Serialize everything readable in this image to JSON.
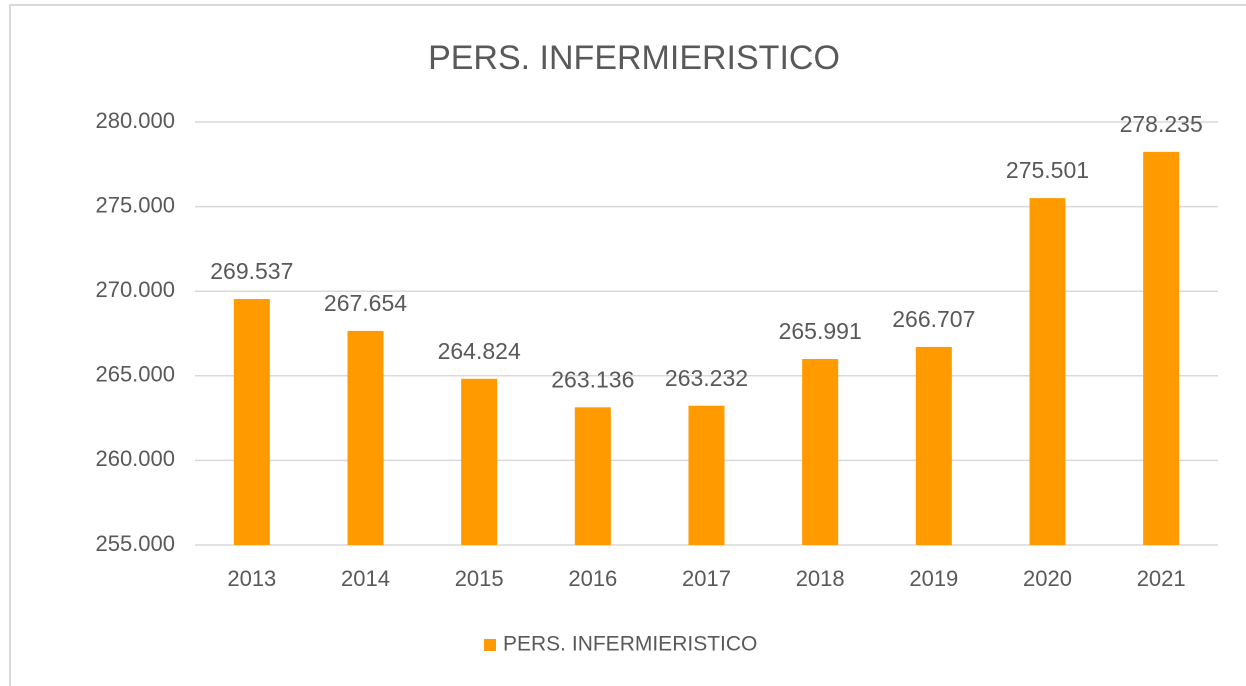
{
  "chart_data": {
    "type": "bar",
    "title": "PERS. INFERMIERISTICO",
    "categories": [
      "2013",
      "2014",
      "2015",
      "2016",
      "2017",
      "2018",
      "2019",
      "2020",
      "2021"
    ],
    "series": [
      {
        "name": "PERS. INFERMIERISTICO",
        "color": "#ff9a00",
        "values": [
          269537,
          267654,
          264824,
          263136,
          263232,
          265991,
          266707,
          275501,
          278235
        ],
        "value_labels": [
          "269.537",
          "267.654",
          "264.824",
          "263.136",
          "263.232",
          "265.991",
          "266.707",
          "275.501",
          "278.235"
        ]
      }
    ],
    "ylim": [
      255000,
      280000
    ],
    "yticks": [
      {
        "value": 255000,
        "label": "255.000"
      },
      {
        "value": 260000,
        "label": "260.000"
      },
      {
        "value": 265000,
        "label": "265.000"
      },
      {
        "value": 270000,
        "label": "270.000"
      },
      {
        "value": 275000,
        "label": "275.000"
      },
      {
        "value": 280000,
        "label": "280.000"
      }
    ],
    "grid": true,
    "legend": "bottom"
  }
}
